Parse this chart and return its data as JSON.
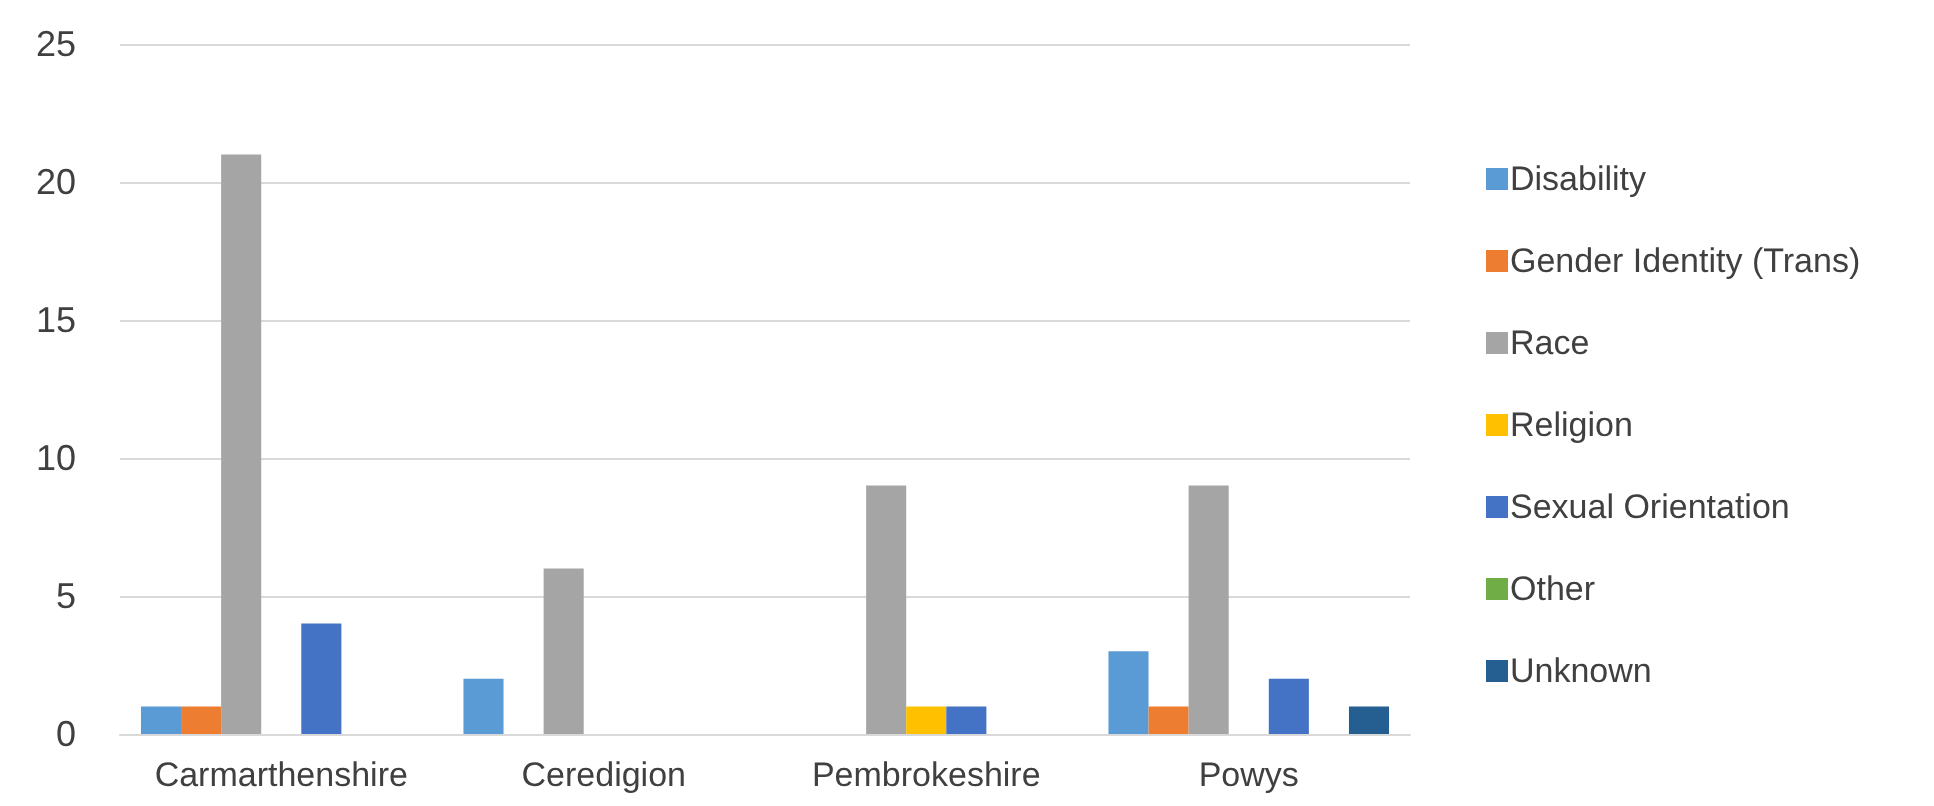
{
  "chart_data": {
    "type": "bar",
    "categories": [
      "Carmarthenshire",
      "Ceredigion",
      "Pembrokeshire",
      "Powys"
    ],
    "series": [
      {
        "name": "Disability",
        "color": "#5b9bd5",
        "values": [
          1,
          2,
          0,
          3
        ]
      },
      {
        "name": "Gender Identity (Trans)",
        "color": "#ed7d31",
        "values": [
          1,
          0,
          0,
          1
        ]
      },
      {
        "name": "Race",
        "color": "#a5a5a5",
        "values": [
          21,
          6,
          9,
          9
        ]
      },
      {
        "name": "Religion",
        "color": "#ffc000",
        "values": [
          0,
          0,
          1,
          0
        ]
      },
      {
        "name": "Sexual Orientation",
        "color": "#4472c4",
        "values": [
          4,
          0,
          1,
          2
        ]
      },
      {
        "name": "Other",
        "color": "#70ad47",
        "values": [
          0,
          0,
          0,
          0
        ]
      },
      {
        "name": "Unknown",
        "color": "#255e91",
        "values": [
          0,
          0,
          0,
          1
        ]
      }
    ],
    "ylim": [
      0,
      25
    ],
    "yticks": [
      0,
      5,
      10,
      15,
      20,
      25
    ],
    "grid": "y",
    "legend": "right"
  }
}
